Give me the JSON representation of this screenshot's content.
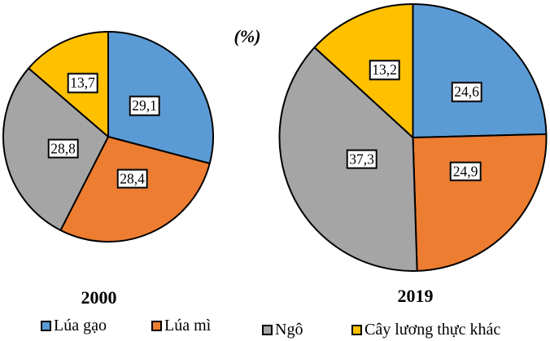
{
  "unit_label": "(%)",
  "chart_data": [
    {
      "type": "pie",
      "year": "2000",
      "categories": [
        "Lúa gạo",
        "Lúa mì",
        "Ngô",
        "Cây lương thực khác"
      ],
      "values": [
        29.1,
        28.4,
        28.8,
        13.7
      ],
      "data_labels": [
        "29,1",
        "28,4",
        "28,8",
        "13,7"
      ],
      "colors": [
        "#5B9BD5",
        "#ED7D31",
        "#A5A5A5",
        "#FFC000"
      ]
    },
    {
      "type": "pie",
      "year": "2019",
      "categories": [
        "Lúa gạo",
        "Lúa mì",
        "Ngô",
        "Cây lương thực khác"
      ],
      "values": [
        24.6,
        24.9,
        37.3,
        13.2
      ],
      "data_labels": [
        "24,6",
        "24,9",
        "37,3",
        "13,2"
      ],
      "colors": [
        "#5B9BD5",
        "#ED7D31",
        "#A5A5A5",
        "#FFC000"
      ]
    }
  ],
  "legend": {
    "items": [
      {
        "label": "Lúa gạo",
        "color": "#5B9BD5"
      },
      {
        "label": "Lúa mì",
        "color": "#ED7D31"
      },
      {
        "label": "Ngô",
        "color": "#A5A5A5"
      },
      {
        "label": "Cây lương thực khác",
        "color": "#FFC000"
      }
    ]
  }
}
